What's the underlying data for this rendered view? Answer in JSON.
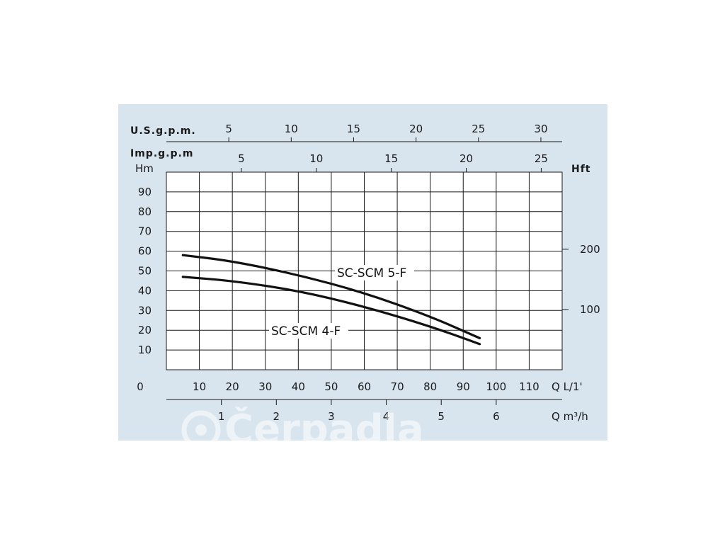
{
  "chart_data": {
    "type": "line",
    "x_label": "Q L/1'",
    "y_label": "Hm",
    "y_right_label": "Hft",
    "x2_label": "Q m³/h",
    "top_axis1_label": "U.S.g.p.m.",
    "top_axis2_label": "Imp.g.p.m",
    "x_ticks": [
      "0",
      "10",
      "20",
      "30",
      "40",
      "50",
      "60",
      "70",
      "80",
      "90",
      "100",
      "110"
    ],
    "y_ticks": [
      "10",
      "20",
      "30",
      "40",
      "50",
      "60",
      "70",
      "80",
      "90"
    ],
    "hft_ticks": [
      "100",
      "200"
    ],
    "m3h_ticks": [
      "1",
      "2",
      "3",
      "4",
      "5",
      "6"
    ],
    "usgpm_ticks": [
      "5",
      "10",
      "15",
      "20",
      "25",
      "30"
    ],
    "impgpm_ticks": [
      "5",
      "10",
      "15",
      "20",
      "25"
    ],
    "xlim": [
      0,
      120
    ],
    "ylim": [
      0,
      100
    ],
    "grid": true,
    "series": [
      {
        "name": "SC-SCM 5-F",
        "x": [
          5,
          20,
          40,
          60,
          80,
          95
        ],
        "y": [
          58,
          55,
          48,
          39,
          27,
          16
        ]
      },
      {
        "name": "SC-SCM 4-F",
        "x": [
          5,
          20,
          40,
          60,
          80,
          95
        ],
        "y": [
          47,
          45,
          40,
          32,
          22,
          13
        ]
      }
    ],
    "colors": {
      "panel": "#d8e5ee",
      "plot": "#ffffff",
      "line": "#111111"
    }
  },
  "watermark": {
    "text": "Čerpadla"
  }
}
